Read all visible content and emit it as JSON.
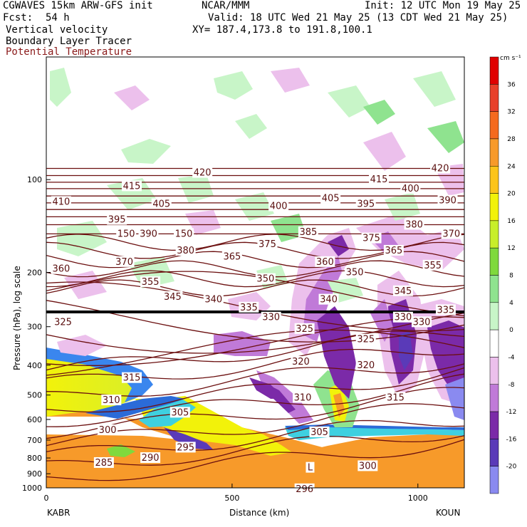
{
  "header": {
    "title": "CGWAVES 15km ARW-GFS init",
    "org": "NCAR/MMM",
    "init": "Init: 12 UTC Mon 19 May 25",
    "fcst_label": "Fcst:",
    "fcst_value": "54 h",
    "valid": "Valid: 18 UTC Wed 21 May 25 (13 CDT Wed 21 May 25)",
    "field1": "Vertical velocity",
    "field2": "Boundary Layer Tracer",
    "field3": "Potential Temperature",
    "xy": "XY= 187.4,173.8 to 191.8,100.1"
  },
  "chart_data": {
    "type": "heatmap",
    "xlabel": "Distance (km)",
    "ylabel": "Pressure (hPa), log scale",
    "xlim": [
      0,
      1125
    ],
    "ylim": [
      1000,
      40
    ],
    "yscale": "log",
    "x_ticks": [
      {
        "value": 0,
        "label": "0"
      },
      {
        "value": 500,
        "label": "500"
      },
      {
        "value": 1000,
        "label": "1000"
      }
    ],
    "y_ticks": [
      {
        "value": 100,
        "label": "100"
      },
      {
        "value": 200,
        "label": "200"
      },
      {
        "value": 300,
        "label": "300"
      },
      {
        "value": 400,
        "label": "400"
      },
      {
        "value": 500,
        "label": "500"
      },
      {
        "value": 600,
        "label": "600"
      },
      {
        "value": 700,
        "label": "700"
      },
      {
        "value": 800,
        "label": "800"
      },
      {
        "value": 900,
        "label": "900"
      },
      {
        "value": 1000,
        "label": "1000"
      }
    ],
    "endpoints": {
      "left": "KABR",
      "right": "KOUN"
    },
    "colorbar": {
      "units": "cm s⁻¹",
      "levels": [
        {
          "value": 36,
          "label": "36",
          "color": "#e8402a"
        },
        {
          "value": 32,
          "label": "32",
          "color": "#f46a1e"
        },
        {
          "value": 28,
          "label": "28",
          "color": "#f79a2a"
        },
        {
          "value": 24,
          "label": "24",
          "color": "#fcc419"
        },
        {
          "value": 20,
          "label": "20",
          "color": "#f2f20a"
        },
        {
          "value": 16,
          "label": "16",
          "color": "#c8ee2a"
        },
        {
          "value": 12,
          "label": "12",
          "color": "#7fd93d"
        },
        {
          "value": 8,
          "label": "8",
          "color": "#8fe38f"
        },
        {
          "value": 4,
          "label": "4",
          "color": "#c8f5c8"
        },
        {
          "value": 0,
          "label": "0",
          "color": "#ffffff"
        },
        {
          "value": -4,
          "label": "-4",
          "color": "#ecc0ec"
        },
        {
          "value": -8,
          "label": "-8",
          "color": "#c07ad8"
        },
        {
          "value": -12,
          "label": "-12",
          "color": "#7b2aa8"
        },
        {
          "value": -16,
          "label": "-16",
          "color": "#5a3ab8"
        },
        {
          "value": -20,
          "label": "-20",
          "color": "#8a8af0"
        }
      ],
      "top_color": "#e00000"
    },
    "theta_labels": [
      {
        "label": "420",
        "x": 420,
        "p": 95
      },
      {
        "label": "415",
        "x": 230,
        "p": 105
      },
      {
        "label": "410",
        "x": 40,
        "p": 118
      },
      {
        "label": "405",
        "x": 310,
        "p": 120
      },
      {
        "label": "400",
        "x": 625,
        "p": 122
      },
      {
        "label": "395",
        "x": 190,
        "p": 135
      },
      {
        "label": "390",
        "x": 275,
        "p": 150
      },
      {
        "label": "385",
        "x": 705,
        "p": 148
      },
      {
        "label": "380",
        "x": 375,
        "p": 170
      },
      {
        "label": "375",
        "x": 595,
        "p": 162
      },
      {
        "label": "370",
        "x": 210,
        "p": 185
      },
      {
        "label": "365",
        "x": 500,
        "p": 178
      },
      {
        "label": "360",
        "x": 40,
        "p": 195
      },
      {
        "label": "355",
        "x": 280,
        "p": 215
      },
      {
        "label": "350",
        "x": 590,
        "p": 210
      },
      {
        "label": "345",
        "x": 340,
        "p": 240
      },
      {
        "label": "340",
        "x": 450,
        "p": 245
      },
      {
        "label": "335",
        "x": 545,
        "p": 260
      },
      {
        "label": "330",
        "x": 605,
        "p": 280
      },
      {
        "label": "325",
        "x": 45,
        "p": 290
      },
      {
        "label": "325",
        "x": 695,
        "p": 305
      },
      {
        "label": "320",
        "x": 685,
        "p": 390
      },
      {
        "label": "315",
        "x": 230,
        "p": 440
      },
      {
        "label": "310",
        "x": 175,
        "p": 520
      },
      {
        "label": "305",
        "x": 360,
        "p": 570
      },
      {
        "label": "300",
        "x": 165,
        "p": 650
      },
      {
        "label": "305",
        "x": 735,
        "p": 660
      },
      {
        "label": "295",
        "x": 375,
        "p": 740
      },
      {
        "label": "290",
        "x": 280,
        "p": 800
      },
      {
        "label": "285",
        "x": 155,
        "p": 830
      },
      {
        "label": "300",
        "x": 865,
        "p": 850
      },
      {
        "label": "296",
        "x": 695,
        "p": 1010
      }
    ],
    "extra_labels": [
      {
        "label": "150",
        "x": 215,
        "p": 150
      },
      {
        "label": "150",
        "x": 370,
        "p": 150
      },
      {
        "label": "L",
        "x": 710,
        "p": 860
      },
      {
        "label": "310",
        "x": 690,
        "p": 510
      },
      {
        "label": "380",
        "x": 990,
        "p": 140
      },
      {
        "label": "370",
        "x": 1090,
        "p": 150
      },
      {
        "label": "365",
        "x": 935,
        "p": 170
      },
      {
        "label": "355",
        "x": 1040,
        "p": 190
      },
      {
        "label": "345",
        "x": 960,
        "p": 230
      },
      {
        "label": "335",
        "x": 1075,
        "p": 265
      },
      {
        "label": "330",
        "x": 960,
        "p": 280
      },
      {
        "label": "350",
        "x": 830,
        "p": 200
      },
      {
        "label": "340",
        "x": 760,
        "p": 245
      },
      {
        "label": "360",
        "x": 750,
        "p": 185
      },
      {
        "label": "375",
        "x": 875,
        "p": 155
      },
      {
        "label": "395",
        "x": 860,
        "p": 120
      },
      {
        "label": "405",
        "x": 765,
        "p": 115
      },
      {
        "label": "415",
        "x": 895,
        "p": 100
      },
      {
        "label": "400",
        "x": 980,
        "p": 107
      },
      {
        "label": "390",
        "x": 1080,
        "p": 117
      },
      {
        "label": "420",
        "x": 1060,
        "p": 92
      },
      {
        "label": "320",
        "x": 860,
        "p": 400
      },
      {
        "label": "325",
        "x": 860,
        "p": 330
      },
      {
        "label": "315",
        "x": 940,
        "p": 510
      },
      {
        "label": "330",
        "x": 1010,
        "p": 290
      }
    ]
  }
}
